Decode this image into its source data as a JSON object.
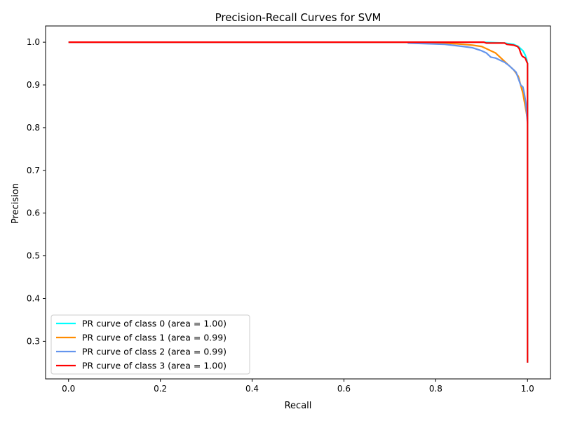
{
  "chart_data": {
    "type": "line",
    "title": "Precision-Recall Curves for SVM",
    "xlabel": "Recall",
    "ylabel": "Precision",
    "xlim": [
      -0.05,
      1.05
    ],
    "ylim": [
      0.212,
      1.038
    ],
    "xticks": [
      0.0,
      0.2,
      0.4,
      0.6,
      0.8,
      1.0
    ],
    "xtick_labels": [
      "0.0",
      "0.2",
      "0.4",
      "0.6",
      "0.8",
      "1.0"
    ],
    "yticks": [
      0.3,
      0.4,
      0.5,
      0.6,
      0.7,
      0.8,
      0.9,
      1.0
    ],
    "ytick_labels": [
      "0.3",
      "0.4",
      "0.5",
      "0.6",
      "0.7",
      "0.8",
      "0.9",
      "1.0"
    ],
    "grid": false,
    "legend_position": "lower-left",
    "series": [
      {
        "name": "PR curve of class 0 (area = 1.00)",
        "color": "#00ffff",
        "x": [
          0.0,
          0.74,
          0.9,
          0.95,
          0.97,
          0.98,
          0.985,
          0.99,
          0.995,
          0.998,
          1.0,
          1.0
        ],
        "y": [
          1.0,
          1.0,
          1.0,
          0.998,
          0.995,
          0.99,
          0.985,
          0.98,
          0.97,
          0.96,
          0.95,
          0.25
        ]
      },
      {
        "name": "PR curve of class 1 (area = 0.99)",
        "color": "#ff8c00",
        "x": [
          0.0,
          0.74,
          0.82,
          0.86,
          0.88,
          0.9,
          0.91,
          0.92,
          0.93,
          0.94,
          0.95,
          0.96,
          0.97,
          0.98,
          0.985,
          0.99,
          0.995,
          1.0
        ],
        "y": [
          1.0,
          1.0,
          0.998,
          0.995,
          0.993,
          0.99,
          0.985,
          0.98,
          0.975,
          0.965,
          0.955,
          0.945,
          0.935,
          0.92,
          0.9,
          0.88,
          0.85,
          0.82
        ]
      },
      {
        "name": "PR curve of class 2 (area = 0.99)",
        "color": "#6495ed",
        "x": [
          0.0,
          0.74,
          0.74,
          0.82,
          0.86,
          0.88,
          0.9,
          0.91,
          0.92,
          0.93,
          0.94,
          0.95,
          0.96,
          0.97,
          0.975,
          0.98,
          0.985,
          0.99,
          0.993,
          0.996,
          1.0
        ],
        "y": [
          1.0,
          1.0,
          0.998,
          0.995,
          0.99,
          0.987,
          0.98,
          0.975,
          0.965,
          0.963,
          0.958,
          0.953,
          0.945,
          0.935,
          0.93,
          0.915,
          0.9,
          0.895,
          0.88,
          0.86,
          0.81
        ]
      },
      {
        "name": "PR curve of class 3 (area = 1.00)",
        "color": "#ff0000",
        "x": [
          0.0,
          0.905,
          0.91,
          0.95,
          0.955,
          0.97,
          0.978,
          0.982,
          0.985,
          0.988,
          0.99,
          0.995,
          0.998,
          1.0,
          1.0
        ],
        "y": [
          1.0,
          1.0,
          0.998,
          0.998,
          0.995,
          0.993,
          0.99,
          0.985,
          0.975,
          0.968,
          0.966,
          0.963,
          0.955,
          0.95,
          0.25
        ]
      }
    ]
  }
}
